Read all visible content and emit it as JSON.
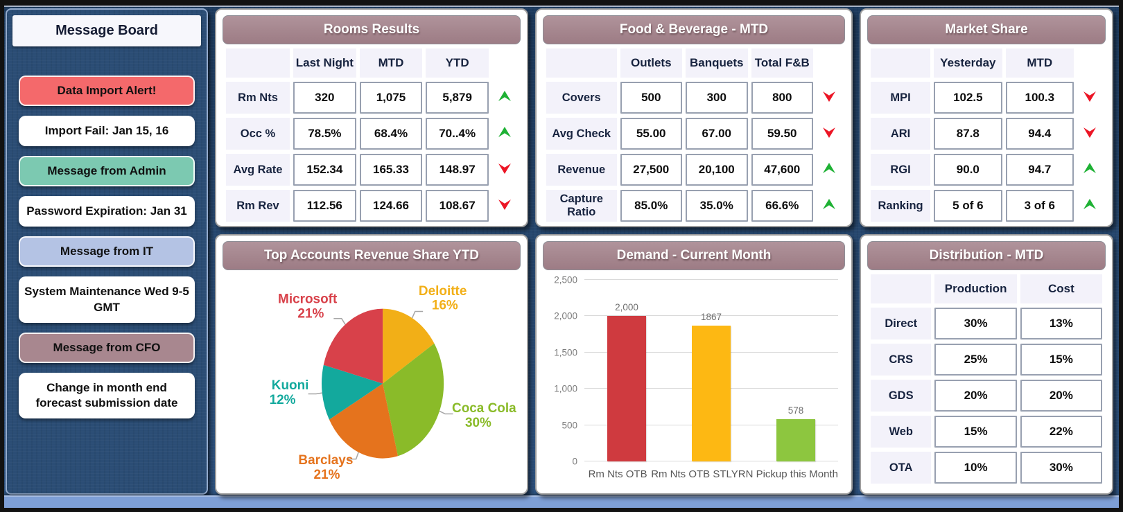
{
  "message_board": {
    "title": "Message Board",
    "items": [
      {
        "text": "Data Import Alert!",
        "color": "#F4696B",
        "kind": "header"
      },
      {
        "text": "Import Fail: Jan 15, 16",
        "color": "#FFFFFF",
        "kind": "message"
      },
      {
        "text": "Message from Admin",
        "color": "#7CC9B1",
        "kind": "header"
      },
      {
        "text": "Password Expiration: Jan 31",
        "color": "#FFFFFF",
        "kind": "message"
      },
      {
        "text": "Message from IT",
        "color": "#B4C3E4",
        "kind": "header"
      },
      {
        "text": "System Maintenance Wed 9-5 GMT",
        "color": "#FFFFFF",
        "kind": "message"
      },
      {
        "text": "Message from CFO",
        "color": "#A8878F",
        "kind": "header"
      },
      {
        "text": "Change in month end forecast submission date",
        "color": "#FFFFFF",
        "kind": "message"
      }
    ]
  },
  "panels": {
    "rooms": {
      "title": "Rooms Results",
      "columns": [
        "Last Night",
        "MTD",
        "YTD"
      ],
      "rows": [
        {
          "label": "Rm Nts",
          "values": [
            "320",
            "1,075",
            "5,879"
          ],
          "trend": "up"
        },
        {
          "label": "Occ %",
          "values": [
            "78.5%",
            "68.4%",
            "70..4%"
          ],
          "trend": "up"
        },
        {
          "label": "Avg Rate",
          "values": [
            "152.34",
            "165.33",
            "148.97"
          ],
          "trend": "down"
        },
        {
          "label": "Rm Rev",
          "values": [
            "112.56",
            "124.66",
            "108.67"
          ],
          "trend": "down"
        }
      ]
    },
    "fnb": {
      "title": "Food & Beverage - MTD",
      "columns": [
        "Outlets",
        "Banquets",
        "Total F&B"
      ],
      "rows": [
        {
          "label": "Covers",
          "values": [
            "500",
            "300",
            "800"
          ],
          "trend": "down"
        },
        {
          "label": "Avg Check",
          "values": [
            "55.00",
            "67.00",
            "59.50"
          ],
          "trend": "down"
        },
        {
          "label": "Revenue",
          "values": [
            "27,500",
            "20,100",
            "47,600"
          ],
          "trend": "up"
        },
        {
          "label": "Capture Ratio",
          "values": [
            "85.0%",
            "35.0%",
            "66.6%"
          ],
          "trend": "up"
        }
      ]
    },
    "market": {
      "title": "Market Share",
      "columns": [
        "Yesterday",
        "MTD"
      ],
      "rows": [
        {
          "label": "MPI",
          "values": [
            "102.5",
            "100.3"
          ],
          "trend": "down"
        },
        {
          "label": "ARI",
          "values": [
            "87.8",
            "94.4"
          ],
          "trend": "down"
        },
        {
          "label": "RGI",
          "values": [
            "90.0",
            "94.7"
          ],
          "trend": "up"
        },
        {
          "label": "Ranking",
          "values": [
            "5 of 6",
            "3 of 6"
          ],
          "trend": "up"
        }
      ]
    },
    "distribution": {
      "title": "Distribution - MTD",
      "columns": [
        "Production",
        "Cost"
      ],
      "rows": [
        {
          "label": "Direct",
          "values": [
            "30%",
            "13%"
          ]
        },
        {
          "label": "CRS",
          "values": [
            "25%",
            "15%"
          ]
        },
        {
          "label": "GDS",
          "values": [
            "20%",
            "20%"
          ]
        },
        {
          "label": "Web",
          "values": [
            "15%",
            "22%"
          ]
        },
        {
          "label": "OTA",
          "values": [
            "10%",
            "30%"
          ]
        }
      ]
    }
  },
  "chart_data": [
    {
      "type": "pie",
      "title": "Top Accounts Revenue Share YTD",
      "start_angle": "top",
      "direction": "clockwise",
      "slices": [
        {
          "label": "Deloitte",
          "value": 16,
          "pct_label": "16%",
          "color": "#F2AF17"
        },
        {
          "label": "Coca Cola",
          "value": 30,
          "pct_label": "30%",
          "color": "#8ABB29"
        },
        {
          "label": "Barclays",
          "value": 21,
          "pct_label": "21%",
          "color": "#E5731D"
        },
        {
          "label": "Kuoni",
          "value": 12,
          "pct_label": "12%",
          "color": "#13A99D"
        },
        {
          "label": "Microsoft",
          "value": 21,
          "pct_label": "21%",
          "color": "#D8414A"
        }
      ],
      "leader_line_color": "#A6A6A6"
    },
    {
      "type": "bar",
      "title": "Demand - Current Month",
      "categories": [
        "Rm Nts OTB",
        "Rm Nts OTB STLY",
        "RN Pickup this Month"
      ],
      "values": [
        2000,
        1867,
        578
      ],
      "value_labels": [
        "2,000",
        "1867",
        "578"
      ],
      "colors": [
        "#CF3A3F",
        "#FDB813",
        "#8DC63F"
      ],
      "ylim": [
        0,
        2500
      ],
      "yticks": [
        0,
        500,
        1000,
        1500,
        2000,
        2500
      ],
      "ytick_labels": [
        "0",
        "500",
        "1,000",
        "1,500",
        "2,000",
        "2,500"
      ],
      "grid": true,
      "legend": "none"
    }
  ],
  "colors": {
    "trend_up": "#1EB134",
    "trend_down": "#EC1525",
    "panel_header": "#A5868E",
    "background": "#27486F",
    "bottom_strip": "#7E9FD6"
  }
}
